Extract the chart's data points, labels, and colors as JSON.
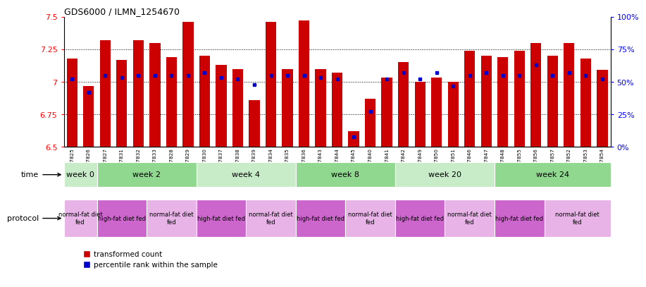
{
  "title": "GDS6000 / ILMN_1254670",
  "samples": [
    "GSM1577825",
    "GSM1577826",
    "GSM1577827",
    "GSM1577831",
    "GSM1577832",
    "GSM1577833",
    "GSM1577828",
    "GSM1577829",
    "GSM1577830",
    "GSM1577837",
    "GSM1577838",
    "GSM1577839",
    "GSM1577834",
    "GSM1577835",
    "GSM1577836",
    "GSM1577843",
    "GSM1577844",
    "GSM1577845",
    "GSM1577840",
    "GSM1577841",
    "GSM1577842",
    "GSM1577849",
    "GSM1577850",
    "GSM1577851",
    "GSM1577846",
    "GSM1577847",
    "GSM1577848",
    "GSM1577855",
    "GSM1577856",
    "GSM1577857",
    "GSM1577852",
    "GSM1577853",
    "GSM1577854"
  ],
  "red_values": [
    7.18,
    6.97,
    7.32,
    7.17,
    7.32,
    7.3,
    7.19,
    7.46,
    7.2,
    7.13,
    7.1,
    6.86,
    7.46,
    7.1,
    7.47,
    7.1,
    7.07,
    6.62,
    6.87,
    7.03,
    7.15,
    7.0,
    7.03,
    7.0,
    7.24,
    7.2,
    7.19,
    7.24,
    7.3,
    7.2,
    7.3,
    7.18,
    7.09
  ],
  "blue_values_pct": [
    52,
    42,
    55,
    53,
    55,
    55,
    55,
    55,
    57,
    53,
    52,
    48,
    55,
    55,
    55,
    53,
    52,
    8,
    27,
    52,
    57,
    52,
    57,
    47,
    55,
    57,
    55,
    55,
    63,
    55,
    57,
    55,
    52
  ],
  "ylim_left": [
    6.5,
    7.5
  ],
  "ylim_right": [
    0,
    100
  ],
  "yticks_left": [
    6.5,
    6.75,
    7.0,
    7.25,
    7.5
  ],
  "ytick_labels_left": [
    "6.5",
    "6.75",
    "7",
    "7.25",
    "7.5"
  ],
  "yticks_right": [
    0,
    25,
    50,
    75,
    100
  ],
  "ytick_labels_right": [
    "0%",
    "25%",
    "50%",
    "75%",
    "100%"
  ],
  "gridlines": [
    6.75,
    7.0,
    7.25
  ],
  "bar_color": "#cc0000",
  "blue_color": "#0000cc",
  "bg_color": "#ffffff",
  "time_groups": [
    {
      "label": "week 0",
      "start": 0,
      "end": 2,
      "color": "#c8ecc8"
    },
    {
      "label": "week 2",
      "start": 2,
      "end": 8,
      "color": "#90d890"
    },
    {
      "label": "week 4",
      "start": 8,
      "end": 14,
      "color": "#c8ecc8"
    },
    {
      "label": "week 8",
      "start": 14,
      "end": 20,
      "color": "#90d890"
    },
    {
      "label": "week 20",
      "start": 20,
      "end": 26,
      "color": "#c8ecc8"
    },
    {
      "label": "week 24",
      "start": 26,
      "end": 33,
      "color": "#90d890"
    }
  ],
  "protocol_groups": [
    {
      "label": "normal-fat diet\nfed",
      "start": 0,
      "end": 2,
      "color": "#e8b4e8"
    },
    {
      "label": "high-fat diet fed",
      "start": 2,
      "end": 5,
      "color": "#cc66cc"
    },
    {
      "label": "normal-fat diet\nfed",
      "start": 5,
      "end": 8,
      "color": "#e8b4e8"
    },
    {
      "label": "high-fat diet fed",
      "start": 8,
      "end": 11,
      "color": "#cc66cc"
    },
    {
      "label": "normal-fat diet\nfed",
      "start": 11,
      "end": 14,
      "color": "#e8b4e8"
    },
    {
      "label": "high-fat diet fed",
      "start": 14,
      "end": 17,
      "color": "#cc66cc"
    },
    {
      "label": "normal-fat diet\nfed",
      "start": 17,
      "end": 20,
      "color": "#e8b4e8"
    },
    {
      "label": "high-fat diet fed",
      "start": 20,
      "end": 23,
      "color": "#cc66cc"
    },
    {
      "label": "normal-fat diet\nfed",
      "start": 23,
      "end": 26,
      "color": "#e8b4e8"
    },
    {
      "label": "high-fat diet fed",
      "start": 26,
      "end": 29,
      "color": "#cc66cc"
    },
    {
      "label": "normal-fat diet\nfed",
      "start": 29,
      "end": 33,
      "color": "#e8b4e8"
    }
  ]
}
